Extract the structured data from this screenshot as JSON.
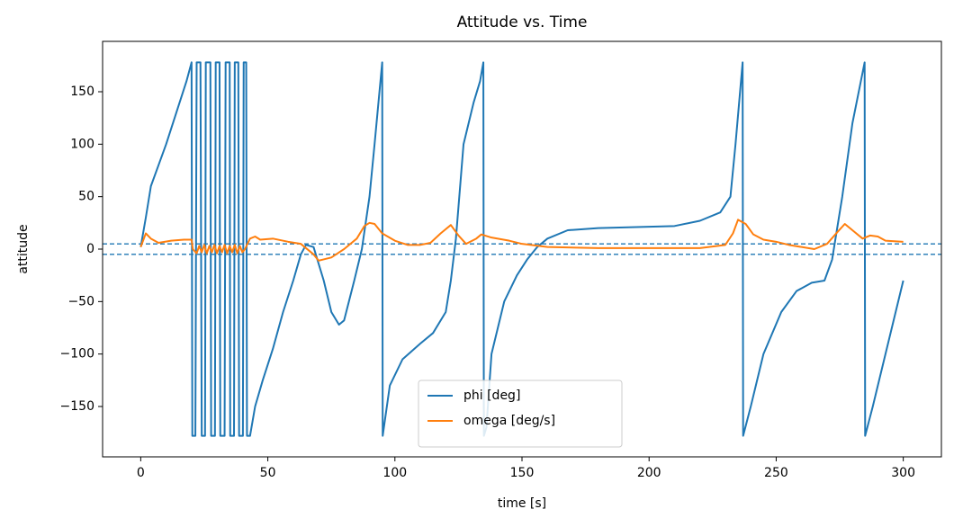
{
  "chart_data": {
    "type": "line",
    "title": "Attitude vs. Time",
    "xlabel": "time [s]",
    "ylabel": "attitude",
    "xlim": [
      -15,
      315
    ],
    "ylim": [
      -198,
      198
    ],
    "xticks": [
      0,
      50,
      100,
      150,
      200,
      250,
      300
    ],
    "yticks": [
      {
        "value": -150,
        "label": "−150"
      },
      {
        "value": -100,
        "label": "−100"
      },
      {
        "value": -50,
        "label": "−50"
      },
      0,
      50,
      100,
      150
    ],
    "grid": false,
    "legend": "lower center",
    "reference_lines": [
      5,
      -5
    ],
    "reference_line_color": "#1f77b4",
    "series": [
      {
        "name": "phi [deg]",
        "color": "#1f77b4",
        "x": [
          0,
          2,
          4,
          7,
          10,
          14,
          18,
          20,
          20.3,
          21.5,
          22,
          23.5,
          24,
          25.3,
          25.6,
          27.4,
          27.7,
          29.2,
          29.5,
          31,
          31.3,
          33,
          33.4,
          35,
          35.2,
          36.7,
          37,
          38.4,
          38.7,
          40.2,
          40.5,
          41.5,
          41.8,
          43,
          45,
          48,
          52,
          56,
          60,
          63,
          65,
          68,
          72,
          75,
          78,
          80,
          84,
          87,
          90,
          92,
          95,
          95.2,
          98,
          103,
          110,
          115,
          120,
          122,
          124,
          127,
          131,
          133.5,
          134.8,
          135,
          136,
          138,
          143,
          148,
          152,
          156,
          160,
          168,
          180,
          195,
          210,
          220,
          228,
          232,
          234,
          236.8,
          237,
          240,
          245,
          252,
          258,
          264,
          269,
          272,
          276,
          280,
          284.8,
          285,
          288,
          293,
          297,
          300
        ],
        "values": [
          2,
          30,
          60,
          80,
          100,
          130,
          160,
          178,
          -178,
          -178,
          178,
          178,
          -178,
          -178,
          178,
          178,
          -178,
          -178,
          178,
          178,
          -178,
          -178,
          178,
          178,
          -178,
          -178,
          178,
          178,
          -178,
          -178,
          178,
          178,
          -178,
          -178,
          -150,
          -125,
          -95,
          -60,
          -30,
          -5,
          4,
          2,
          -30,
          -60,
          -72,
          -68,
          -30,
          0,
          50,
          100,
          178,
          -178,
          -130,
          -105,
          -90,
          -80,
          -60,
          -30,
          10,
          100,
          140,
          160,
          178,
          -178,
          -170,
          -100,
          -50,
          -25,
          -10,
          2,
          10,
          18,
          20,
          21,
          22,
          27,
          35,
          50,
          100,
          178,
          -178,
          -150,
          -100,
          -60,
          -40,
          -32,
          -30,
          -10,
          50,
          120,
          178,
          -178,
          -150,
          -100,
          -60,
          -30
        ]
      },
      {
        "name": "omega [deg/s]",
        "color": "#ff7f0e",
        "x": [
          0,
          2,
          4,
          7,
          12,
          17,
          20,
          20.5,
          22,
          23,
          24,
          25,
          26,
          27,
          28,
          29,
          30,
          31,
          32,
          33,
          34,
          35,
          36,
          37,
          38,
          39,
          40,
          41,
          43,
          45,
          47,
          52,
          58,
          63,
          68,
          70,
          75,
          80,
          85,
          88,
          90,
          92,
          95,
          100,
          105,
          110,
          114,
          118,
          122,
          125,
          128,
          132,
          134,
          138,
          145,
          150,
          160,
          180,
          220,
          230,
          233,
          235,
          238,
          241,
          245,
          250,
          255,
          260,
          265,
          270,
          274,
          277,
          280,
          284,
          287,
          290,
          293,
          300
        ],
        "values": [
          2,
          15,
          10,
          6,
          8,
          9,
          9,
          0,
          -4,
          3,
          -3,
          4,
          -4,
          3,
          -3,
          4,
          -4,
          3,
          -3,
          4,
          -4,
          3,
          -3,
          4,
          -4,
          3,
          -3,
          0,
          10,
          12,
          9,
          10,
          7,
          5,
          -5,
          -11,
          -8,
          0,
          10,
          22,
          25,
          24,
          15,
          8,
          4,
          4,
          6,
          15,
          23,
          13,
          5,
          10,
          14,
          11,
          8,
          5,
          2,
          1,
          1,
          4,
          15,
          28,
          24,
          14,
          9,
          7,
          4,
          2,
          0,
          5,
          16,
          24,
          18,
          10,
          13,
          12,
          8,
          7
        ]
      }
    ]
  }
}
